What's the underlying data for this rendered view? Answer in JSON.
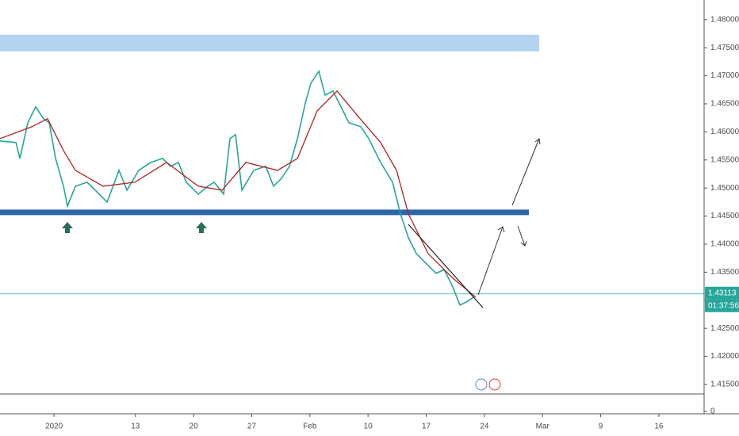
{
  "chart_data": {
    "type": "line",
    "series": [
      {
        "color": "#26a69a",
        "x": [
          -4.64,
          -3.27,
          -2.93,
          -2.25,
          -1.57,
          -0.89,
          -0.41,
          0.14,
          0.82,
          1.16,
          1.84,
          2.86,
          3.89,
          4.57,
          5.59,
          6.27,
          7.29,
          8.32,
          9.34,
          10.02,
          10.7,
          11.38,
          12.41,
          13.22,
          13.77,
          14.59,
          15.13,
          15.61,
          16.16,
          17.18,
          18.2,
          18.88,
          19.56,
          20.25,
          20.93,
          21.61,
          22.09,
          22.77,
          23.31,
          23.99,
          24.68,
          25.36,
          26.38,
          27.06,
          28.08,
          29.11,
          29.79,
          30.47,
          31.15,
          32.17,
          32.86,
          33.54,
          34.22,
          34.9,
          35.58,
          36.06
        ],
        "values": [
          1.45838,
          1.4581,
          1.45527,
          1.46163,
          1.46445,
          1.46234,
          1.46163,
          1.45527,
          1.45032,
          1.44679,
          1.45032,
          1.45103,
          1.44891,
          1.4475,
          1.45315,
          1.44962,
          1.45315,
          1.45456,
          1.45527,
          1.45386,
          1.45456,
          1.45103,
          1.44891,
          1.45032,
          1.45103,
          1.44891,
          1.4588,
          1.45951,
          1.44962,
          1.45315,
          1.45386,
          1.45032,
          1.45174,
          1.45386,
          1.4588,
          1.46516,
          1.46869,
          1.47081,
          1.46657,
          1.46728,
          1.46445,
          1.46163,
          1.46092,
          1.4588,
          1.45456,
          1.45103,
          1.44538,
          1.44114,
          1.43831,
          1.43619,
          1.43478,
          1.43548,
          1.43266,
          1.42913,
          1.42983,
          1.43054
        ]
      },
      {
        "color": "#b22222",
        "x": [
          -4.64,
          -1.91,
          -0.55,
          0.82,
          1.84,
          4.23,
          6.95,
          9.68,
          12.41,
          14.45,
          16.5,
          19.22,
          20.93,
          22.63,
          24.34,
          26.04,
          28.08,
          29.45,
          30.47,
          32.17,
          34.22,
          36.26
        ],
        "values": [
          1.4588,
          1.46092,
          1.46234,
          1.45668,
          1.45315,
          1.45032,
          1.45103,
          1.45456,
          1.45032,
          1.44962,
          1.45456,
          1.45315,
          1.45527,
          1.46375,
          1.46728,
          1.46304,
          1.4581,
          1.45315,
          1.44538,
          1.43831,
          1.43407,
          1.43054
        ]
      }
    ],
    "xlim": [
      -4.64,
      55.89
    ],
    "xticks": [
      {
        "value": 0,
        "label": "2020"
      },
      {
        "value": 7,
        "label": "13"
      },
      {
        "value": 12,
        "label": "20"
      },
      {
        "value": 17,
        "label": "27"
      },
      {
        "value": 22,
        "label": "Feb"
      },
      {
        "value": 27,
        "label": "10"
      },
      {
        "value": 32,
        "label": "17"
      },
      {
        "value": 37,
        "label": "24"
      },
      {
        "value": 42,
        "label": "Mar"
      },
      {
        "value": 47,
        "label": "9"
      },
      {
        "value": 52,
        "label": "16"
      }
    ],
    "ylim": [
      1.4133,
      1.4835
    ],
    "yticks": [
      {
        "value": 1.48,
        "label": "1.48000"
      },
      {
        "value": 1.475,
        "label": "1.47500"
      },
      {
        "value": 1.47,
        "label": "1.47000"
      },
      {
        "value": 1.465,
        "label": "1.46500"
      },
      {
        "value": 1.46,
        "label": "1.46000"
      },
      {
        "value": 1.455,
        "label": "1.45500"
      },
      {
        "value": 1.45,
        "label": "1.45000"
      },
      {
        "value": 1.445,
        "label": "1.44500"
      },
      {
        "value": 1.44,
        "label": "1.44000"
      },
      {
        "value": 1.435,
        "label": "1.43500"
      },
      {
        "value": 1.43,
        "label": "1.43000"
      },
      {
        "value": 1.425,
        "label": "1.42500"
      },
      {
        "value": 1.42,
        "label": "1.42000"
      },
      {
        "value": 1.415,
        "label": "1.41500"
      }
    ],
    "volume_yticks": [
      0
    ],
    "resistance_zone": {
      "from": 1.47435,
      "to": 1.47731,
      "x_end": 41.72,
      "color": "#b3d3f0"
    },
    "support_line": {
      "value": 1.44566,
      "x_end": 40.83,
      "color": "#2a65a8"
    },
    "current_price": 1.43113,
    "countdown": "01:37:56",
    "price_label_color": "#26a69a"
  }
}
